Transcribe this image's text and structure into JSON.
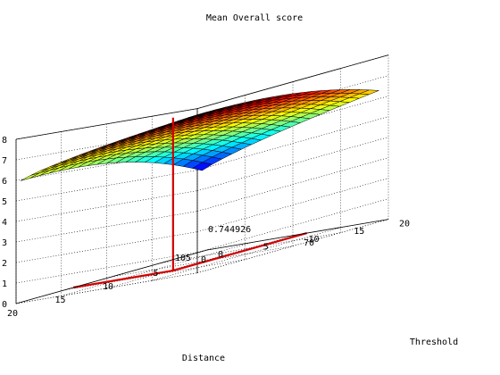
{
  "chart_data": {
    "type": "surface",
    "title": "Mean Overall score",
    "xlabel": "Distance",
    "ylabel": "Threshold",
    "zlabel": "",
    "xlim": [
      0,
      20
    ],
    "ylim": [
      0,
      20
    ],
    "zlim": [
      0,
      0.8
    ],
    "grid": true,
    "colormap": "jet",
    "x_ticks": [
      "20",
      "15",
      "10",
      "5",
      "0"
    ],
    "y_ticks": [
      "0",
      "5",
      "10",
      "15",
      "20"
    ],
    "z_ticks": [
      "0",
      "0.1",
      "0.2",
      "0.3",
      "0.4",
      "0.5",
      "0.6",
      "0.7",
      "0.8"
    ],
    "surface": {
      "x_range": [
        1,
        20
      ],
      "y_range": [
        0.5,
        20
      ],
      "z_at_x20": 0.58,
      "z_peak": 0.77,
      "z_min": 0.37,
      "note_shape": "High ridge along high-threshold edge, falling toward low threshold and low distance"
    },
    "annotations": [
      {
        "text": "0.744926",
        "kind": "datatip-value"
      },
      {
        "text": "70",
        "kind": "datatip-index"
      },
      {
        "text": "105",
        "kind": "datatip-index"
      }
    ],
    "datatip": {
      "x": 14,
      "y": 11,
      "z": 0.744926
    }
  }
}
